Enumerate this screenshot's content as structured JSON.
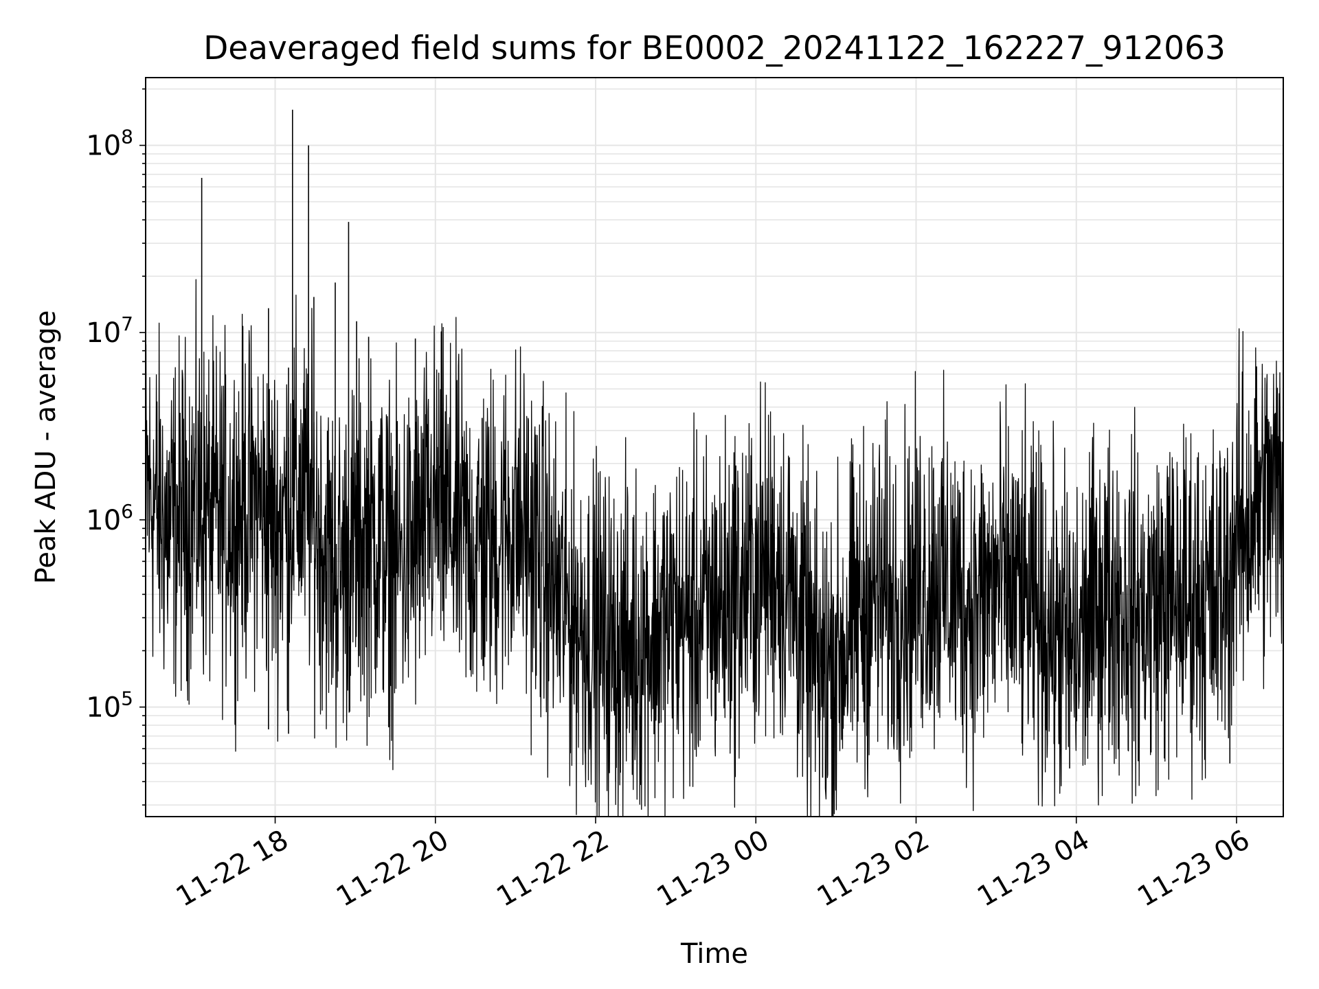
{
  "chart_data": {
    "type": "line",
    "title": "Deaveraged field sums for BE0002_20241122_162227_912063",
    "xlabel": "Time",
    "ylabel": "Peak ADU - average",
    "yscale": "log",
    "xlim": [
      "2024-11-22 16:23",
      "2024-11-23 06:35"
    ],
    "ylim": [
      26000,
      230000000
    ],
    "grid": true,
    "line_color": "#000000",
    "grid_color": "#e5e5e5",
    "x_ticks": [
      {
        "t": "2024-11-22 18:00",
        "label": "11-22 18"
      },
      {
        "t": "2024-11-22 20:00",
        "label": "11-22 20"
      },
      {
        "t": "2024-11-22 22:00",
        "label": "11-22 22"
      },
      {
        "t": "2024-11-23 00:00",
        "label": "11-23 00"
      },
      {
        "t": "2024-11-23 02:00",
        "label": "11-23 02"
      },
      {
        "t": "2024-11-23 04:00",
        "label": "11-23 04"
      },
      {
        "t": "2024-11-23 06:00",
        "label": "11-23 06"
      }
    ],
    "y_ticks": [
      {
        "v": 100000,
        "base": "10",
        "exp": "5"
      },
      {
        "v": 1000000,
        "base": "10",
        "exp": "6"
      },
      {
        "v": 10000000,
        "base": "10",
        "exp": "7"
      },
      {
        "v": 100000000,
        "base": "10",
        "exp": "8"
      }
    ],
    "series": [
      {
        "x": [
          "2024-11-22 16:23",
          "2024-11-22 16:40",
          "2024-11-22 17:00",
          "2024-11-22 17:15",
          "2024-11-22 17:30",
          "2024-11-22 17:45",
          "2024-11-22 18:00",
          "2024-11-22 18:15",
          "2024-11-22 18:30",
          "2024-11-22 18:45",
          "2024-11-22 19:00",
          "2024-11-22 19:15",
          "2024-11-22 19:30",
          "2024-11-22 19:45",
          "2024-11-22 20:00",
          "2024-11-22 20:15",
          "2024-11-22 20:30",
          "2024-11-22 20:45",
          "2024-11-22 21:00",
          "2024-11-22 21:15",
          "2024-11-22 21:30",
          "2024-11-22 21:45",
          "2024-11-22 22:00",
          "2024-11-22 22:15",
          "2024-11-22 22:30",
          "2024-11-22 22:45",
          "2024-11-22 23:00",
          "2024-11-22 23:15",
          "2024-11-22 23:30",
          "2024-11-22 23:45",
          "2024-11-23 00:00",
          "2024-11-23 00:15",
          "2024-11-23 00:30",
          "2024-11-23 00:45",
          "2024-11-23 01:00",
          "2024-11-23 01:15",
          "2024-11-23 01:30",
          "2024-11-23 01:45",
          "2024-11-23 02:00",
          "2024-11-23 02:15",
          "2024-11-23 02:30",
          "2024-11-23 02:45",
          "2024-11-23 03:00",
          "2024-11-23 03:15",
          "2024-11-23 03:30",
          "2024-11-23 03:45",
          "2024-11-23 04:00",
          "2024-11-23 04:15",
          "2024-11-23 04:30",
          "2024-11-23 04:45",
          "2024-11-23 05:00",
          "2024-11-23 05:15",
          "2024-11-23 05:30",
          "2024-11-23 05:45",
          "2024-11-23 06:00",
          "2024-11-23 06:15",
          "2024-11-23 06:35"
        ],
        "y": [
          1500000,
          900000,
          1200000,
          1000000,
          1100000,
          1300000,
          900000,
          1400000,
          1000000,
          500000,
          700000,
          800000,
          600000,
          700000,
          1200000,
          900000,
          700000,
          800000,
          1000000,
          700000,
          400000,
          300000,
          250000,
          200000,
          220000,
          250000,
          300000,
          280000,
          350000,
          400000,
          500000,
          600000,
          350000,
          150000,
          180000,
          300000,
          400000,
          350000,
          450000,
          500000,
          400000,
          350000,
          450000,
          420000,
          300000,
          250000,
          200000,
          350000,
          400000,
          300000,
          350000,
          380000,
          400000,
          350000,
          800000,
          1200000,
          1400000
        ]
      }
    ],
    "spikes": [
      {
        "t": "2024-11-22 17:05",
        "y": 67000000
      },
      {
        "t": "2024-11-22 17:55",
        "y": 13500000
      },
      {
        "t": "2024-11-22 18:10",
        "y": 6500000
      },
      {
        "t": "2024-11-22 18:13",
        "y": 155000000
      },
      {
        "t": "2024-11-22 18:25",
        "y": 100000000
      },
      {
        "t": "2024-11-22 18:29",
        "y": 15500000
      },
      {
        "t": "2024-11-22 18:45",
        "y": 18500000
      },
      {
        "t": "2024-11-22 18:55",
        "y": 39000000
      },
      {
        "t": "2024-11-22 19:01",
        "y": 11500000
      },
      {
        "t": "2024-11-22 19:10",
        "y": 9500000
      },
      {
        "t": "2024-11-22 19:45",
        "y": 9300000
      },
      {
        "t": "2024-11-22 20:35",
        "y": 3500000
      },
      {
        "t": "2024-11-22 23:45",
        "y": 1950000
      },
      {
        "t": "2024-11-23 03:30",
        "y": 2300000
      },
      {
        "t": "2024-11-23 06:15",
        "y": 6600000
      }
    ],
    "dips": [
      {
        "t": "2024-11-22 17:55",
        "y": 76000
      },
      {
        "t": "2024-11-22 18:10",
        "y": 72000
      },
      {
        "t": "2024-11-22 19:25",
        "y": 78000
      },
      {
        "t": "2024-11-22 22:15",
        "y": 40000
      },
      {
        "t": "2024-11-23 00:50",
        "y": 42000
      },
      {
        "t": "2024-11-23 03:55",
        "y": 47000
      },
      {
        "t": "2024-11-23 05:55",
        "y": 50000
      }
    ]
  }
}
